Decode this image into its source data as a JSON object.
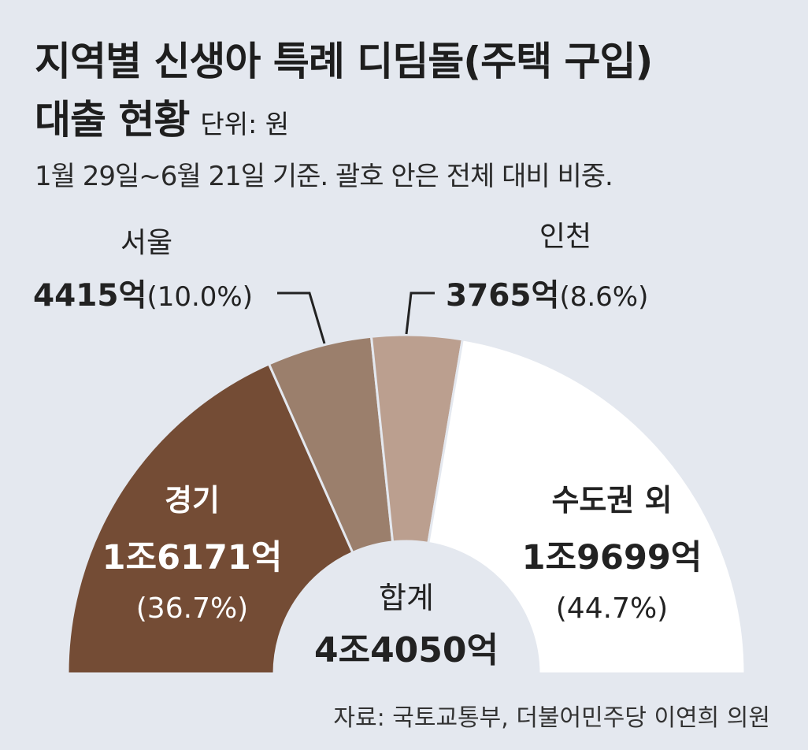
{
  "title_line1": "지역별 신생아 특례 디딤돌(주택 구입)",
  "title_line2": "대출 현황",
  "unit": "단위: 원",
  "subtitle": "1월 29일~6월 21일 기준. 괄호 안은 전체 대비 비중.",
  "source": "자료: 국토교통부, 더불어민주당 이연희 의원",
  "colors": {
    "background": "#e4e8ef",
    "gyeonggi": "#744c35",
    "seoul": "#9b7f6c",
    "incheon": "#bb9f8f",
    "outside": "#ffffff",
    "leader": "#222222"
  },
  "chart_data": {
    "type": "pie",
    "shape": "semi-donut",
    "slices": [
      {
        "name": "경기",
        "amount": "1조6171억",
        "percent_label": "(36.7%)",
        "value": 36.7
      },
      {
        "name": "서울",
        "amount": "4415억",
        "percent_label": "(10.0%)",
        "value": 10.0
      },
      {
        "name": "인천",
        "amount": "3765억",
        "percent_label": "(8.6%)",
        "value": 8.6
      },
      {
        "name": "수도권 외",
        "amount": "1조9699억",
        "percent_label": "(44.7%)",
        "value": 44.7
      }
    ],
    "center_label": "합계",
    "center_value": "4조4050억"
  }
}
